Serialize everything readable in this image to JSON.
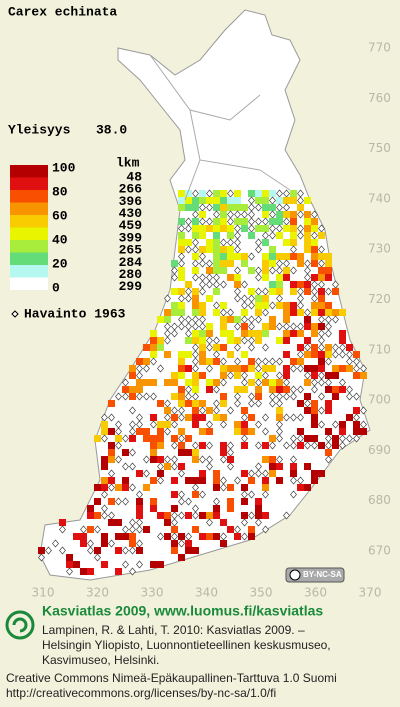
{
  "title": "Carex echinata",
  "frequency": {
    "label": "Yleisyys",
    "value": "38.0"
  },
  "legend": {
    "header": "lkm",
    "scale_labels": [
      "100",
      "80",
      "60",
      "40",
      "20",
      "0"
    ],
    "classes": [
      {
        "color": "#b40000",
        "count": 48
      },
      {
        "color": "#e01010",
        "count": 266
      },
      {
        "color": "#f85000",
        "count": 396
      },
      {
        "color": "#f89400",
        "count": 430
      },
      {
        "color": "#f8cc00",
        "count": 459
      },
      {
        "color": "#e8f400",
        "count": 399
      },
      {
        "color": "#a8ec3c",
        "count": 265
      },
      {
        "color": "#64dc78",
        "count": 284
      },
      {
        "color": "#b4f8f0",
        "count": 280
      },
      {
        "color": "#ffffff",
        "count": 299
      }
    ]
  },
  "observation": "Havainto 1963",
  "y_ticks": [
    770,
    760,
    750,
    740,
    730,
    720,
    710,
    700,
    690,
    680,
    670
  ],
  "x_ticks": [
    310,
    320,
    330,
    340,
    350,
    360,
    370
  ],
  "license_badge": "BY-NC-SA",
  "footer": {
    "heading": "Kasviatlas 2009, www.luomus.fi/kasviatlas",
    "citation": [
      "Lampinen, R. & Lahti, T. 2010: Kasviatlas 2009. –",
      "Helsingin Yliopisto, Luonnontieteellinen keskusmuseo,",
      "Kasvimuseo, Helsinki."
    ],
    "license": [
      "Creative Commons Nimeä-Epäkaupallinen-Tarttuva 1.0 Suomi",
      "http://creativecommons.org/licenses/by-nc-sa/1.0/fi"
    ]
  }
}
